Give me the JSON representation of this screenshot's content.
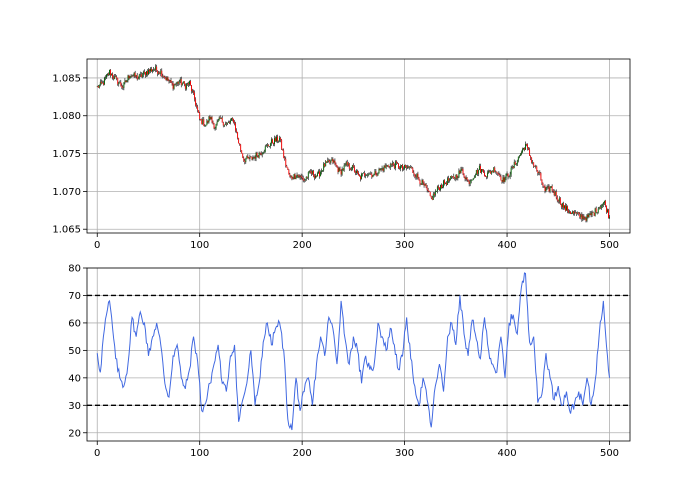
{
  "chart_data": [
    {
      "type": "candlestick",
      "title": "",
      "xlabel": "",
      "ylabel": "",
      "xlim": [
        -10,
        520
      ],
      "ylim": [
        1.0645,
        1.0875
      ],
      "xticks": [
        0,
        100,
        200,
        300,
        400,
        500
      ],
      "xtick_labels": [
        "0",
        "100",
        "200",
        "300",
        "400",
        "500"
      ],
      "yticks": [
        1.065,
        1.07,
        1.075,
        1.08,
        1.085
      ],
      "ytick_labels": [
        "1.065",
        "1.070",
        "1.075",
        "1.080",
        "1.085"
      ],
      "grid": true,
      "up_color": "#006400",
      "down_color": "#ff0000",
      "wick_color": "#000000",
      "close_anchors": [
        [
          0,
          1.0838
        ],
        [
          5,
          1.0842
        ],
        [
          12,
          1.0858
        ],
        [
          18,
          1.0848
        ],
        [
          25,
          1.0838
        ],
        [
          32,
          1.0855
        ],
        [
          40,
          1.085
        ],
        [
          48,
          1.0858
        ],
        [
          55,
          1.0862
        ],
        [
          62,
          1.0858
        ],
        [
          68,
          1.0848
        ],
        [
          74,
          1.084
        ],
        [
          80,
          1.0845
        ],
        [
          86,
          1.084
        ],
        [
          90,
          1.0843
        ],
        [
          95,
          1.0822
        ],
        [
          100,
          1.0795
        ],
        [
          106,
          1.0788
        ],
        [
          110,
          1.0798
        ],
        [
          115,
          1.0785
        ],
        [
          120,
          1.0795
        ],
        [
          126,
          1.0788
        ],
        [
          133,
          1.0795
        ],
        [
          138,
          1.0765
        ],
        [
          143,
          1.0742
        ],
        [
          150,
          1.0743
        ],
        [
          160,
          1.0752
        ],
        [
          170,
          1.0765
        ],
        [
          178,
          1.077
        ],
        [
          183,
          1.074
        ],
        [
          188,
          1.0718
        ],
        [
          195,
          1.0722
        ],
        [
          202,
          1.0715
        ],
        [
          208,
          1.0725
        ],
        [
          215,
          1.072
        ],
        [
          222,
          1.0735
        ],
        [
          230,
          1.074
        ],
        [
          237,
          1.0725
        ],
        [
          243,
          1.0735
        ],
        [
          250,
          1.073
        ],
        [
          256,
          1.0718
        ],
        [
          263,
          1.0725
        ],
        [
          270,
          1.0722
        ],
        [
          278,
          1.073
        ],
        [
          285,
          1.0735
        ],
        [
          292,
          1.0735
        ],
        [
          298,
          1.073
        ],
        [
          305,
          1.0732
        ],
        [
          312,
          1.072
        ],
        [
          320,
          1.0705
        ],
        [
          326,
          1.069
        ],
        [
          333,
          1.0705
        ],
        [
          340,
          1.0712
        ],
        [
          350,
          1.072
        ],
        [
          356,
          1.0728
        ],
        [
          362,
          1.0712
        ],
        [
          368,
          1.0722
        ],
        [
          373,
          1.073
        ],
        [
          380,
          1.0722
        ],
        [
          388,
          1.073
        ],
        [
          396,
          1.0715
        ],
        [
          403,
          1.0725
        ],
        [
          410,
          1.0742
        ],
        [
          418,
          1.0762
        ],
        [
          425,
          1.0738
        ],
        [
          432,
          1.072
        ],
        [
          437,
          1.07
        ],
        [
          443,
          1.0705
        ],
        [
          449,
          1.0692
        ],
        [
          456,
          1.0678
        ],
        [
          463,
          1.0672
        ],
        [
          470,
          1.0668
        ],
        [
          478,
          1.0665
        ],
        [
          485,
          1.0672
        ],
        [
          490,
          1.068
        ],
        [
          495,
          1.0685
        ],
        [
          500,
          1.0665
        ]
      ]
    },
    {
      "type": "line",
      "title": "",
      "xlabel": "",
      "ylabel": "",
      "xlim": [
        -10,
        520
      ],
      "ylim": [
        17,
        80
      ],
      "xticks": [
        0,
        100,
        200,
        300,
        400,
        500
      ],
      "xtick_labels": [
        "0",
        "100",
        "200",
        "300",
        "400",
        "500"
      ],
      "yticks": [
        20,
        30,
        40,
        50,
        60,
        70,
        80
      ],
      "ytick_labels": [
        "20",
        "30",
        "40",
        "50",
        "60",
        "70",
        "80"
      ],
      "grid": true,
      "line_color": "#4169e1",
      "hlines": [
        {
          "y": 70,
          "style": "dashed",
          "color": "#000000"
        },
        {
          "y": 30,
          "style": "dashed",
          "color": "#000000"
        }
      ],
      "series": [
        {
          "name": "",
          "x": [
            0,
            3,
            6,
            9,
            12,
            15,
            18,
            22,
            26,
            30,
            34,
            38,
            42,
            46,
            50,
            54,
            58,
            62,
            66,
            70,
            74,
            78,
            82,
            86,
            90,
            94,
            98,
            102,
            106,
            110,
            114,
            118,
            122,
            126,
            130,
            134,
            138,
            142,
            146,
            150,
            154,
            158,
            162,
            166,
            170,
            174,
            178,
            182,
            186,
            190,
            194,
            198,
            202,
            206,
            210,
            214,
            218,
            222,
            226,
            230,
            234,
            238,
            242,
            246,
            250,
            254,
            258,
            262,
            266,
            270,
            274,
            278,
            282,
            286,
            290,
            294,
            298,
            302,
            306,
            310,
            314,
            318,
            322,
            326,
            330,
            334,
            338,
            342,
            346,
            350,
            354,
            358,
            362,
            366,
            370,
            374,
            378,
            382,
            386,
            390,
            394,
            398,
            402,
            406,
            410,
            414,
            418,
            422,
            426,
            430,
            434,
            438,
            442,
            446,
            450,
            454,
            458,
            462,
            466,
            470,
            474,
            478,
            482,
            486,
            490,
            494,
            498,
            500
          ],
          "values": [
            49,
            42,
            55,
            63,
            68,
            58,
            47,
            40,
            37,
            45,
            62,
            55,
            64,
            60,
            48,
            55,
            60,
            52,
            38,
            33,
            48,
            52,
            40,
            36,
            43,
            55,
            46,
            28,
            31,
            38,
            45,
            52,
            38,
            35,
            48,
            52,
            24,
            32,
            38,
            50,
            30,
            38,
            53,
            60,
            52,
            58,
            60,
            50,
            25,
            21,
            40,
            28,
            35,
            40,
            30,
            45,
            55,
            48,
            62,
            58,
            45,
            68,
            54,
            45,
            55,
            50,
            38,
            48,
            43,
            44,
            60,
            55,
            50,
            58,
            52,
            43,
            48,
            62,
            47,
            37,
            30,
            40,
            32,
            22,
            37,
            45,
            35,
            55,
            60,
            52,
            70,
            56,
            48,
            61,
            54,
            47,
            62,
            50,
            45,
            42,
            55,
            40,
            60,
            63,
            56,
            73,
            78,
            53,
            55,
            31,
            34,
            49,
            40,
            32,
            37,
            30,
            35,
            27,
            31,
            35,
            30,
            40,
            30,
            39,
            56,
            68,
            48,
            40
          ]
        }
      ]
    }
  ]
}
